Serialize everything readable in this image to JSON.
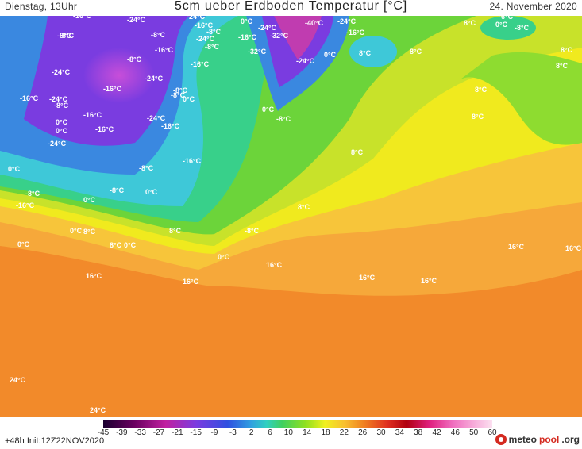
{
  "header": {
    "left": "Dienstag, 13Uhr",
    "title": "5cm ueber Erdboden Temperatur [°C]",
    "right": "24. November 2020"
  },
  "colorbar": {
    "ticks": [
      "-45",
      "-39",
      "-33",
      "-27",
      "-21",
      "-15",
      "-9",
      "-3",
      "2",
      "6",
      "10",
      "14",
      "18",
      "22",
      "26",
      "30",
      "34",
      "38",
      "42",
      "46",
      "50",
      "60"
    ]
  },
  "footer": {
    "run": "+48h  Init:12Z22NOV2020",
    "brand_a": "meteo",
    "brand_b": "pool",
    "brand_c": ".org"
  },
  "map_labels": [
    "-16°C",
    "-8°C",
    "-24°C",
    "-24°C",
    "-16°C",
    "-8°C",
    "-24°C",
    "-8°C",
    "0°C",
    "-24°C",
    "-32°C",
    "-16°C",
    "-8°C",
    "-32°C",
    "-40°C",
    "-24°C",
    "-16°C",
    "-24°C",
    "-6°C",
    "0°C",
    "-8°C",
    "8°C",
    "-8°C",
    "-16°C",
    "-8°C",
    "-16°C",
    "-24°C",
    "-8°C",
    "-16°C",
    "-24°C",
    "-16°C",
    "-24°C",
    "-24°C",
    "-16°C",
    "-8°C",
    "0°C",
    "0°C",
    "-8°C",
    "-16°C",
    "0°C",
    "-16°C",
    "-24°C",
    "-16°C",
    "0°C",
    "-8°C",
    "0°C",
    "8°C",
    "8°C",
    "0°C",
    "-8°C",
    "-16°C",
    "0°C",
    "-8°C",
    "-8°C",
    "0°C",
    "0°C",
    "8°C",
    "8°C",
    "0°C",
    "0°C",
    "8°C",
    "-8°C",
    "8°C",
    "8°C",
    "0°C",
    "8°C",
    "8°C",
    "16°C",
    "16°C",
    "16°C",
    "16°C",
    "16°C",
    "16°C",
    "16°C",
    "8°C",
    "8°C",
    "24°C",
    "24°C"
  ]
}
